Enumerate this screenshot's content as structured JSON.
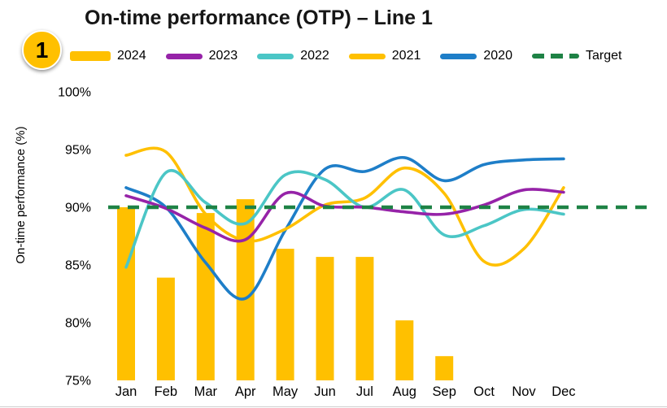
{
  "badge": {
    "label": "1"
  },
  "title": "On-time performance (OTP) – Line 1",
  "ylabel": "On-time performance (%)",
  "legend": [
    {
      "label": "2024",
      "color": "#FFC000",
      "style": "bar"
    },
    {
      "label": "2023",
      "color": "#9623A8",
      "style": "line"
    },
    {
      "label": "2022",
      "color": "#4BC6C6",
      "style": "line"
    },
    {
      "label": "2021",
      "color": "#FFC000",
      "style": "line"
    },
    {
      "label": "2020",
      "color": "#1E7EC8",
      "style": "line"
    },
    {
      "label": "Target",
      "color": "#1E8245",
      "style": "dashed"
    }
  ],
  "chart_data": {
    "type": "bar",
    "subtype": "combo-bar-and-smooth-lines",
    "title": "On-time performance (OTP) – Line 1",
    "xlabel": "",
    "ylabel": "On-time performance (%)",
    "categories": [
      "Jan",
      "Feb",
      "Mar",
      "Apr",
      "May",
      "Jun",
      "Jul",
      "Aug",
      "Sep",
      "Oct",
      "Nov",
      "Dec"
    ],
    "bar_series": {
      "name": "2024",
      "color": "#FFC000",
      "values": [
        90.0,
        83.9,
        89.5,
        90.7,
        86.4,
        85.7,
        85.7,
        80.2,
        77.1,
        null,
        null,
        null
      ]
    },
    "series": [
      {
        "name": "2023",
        "color": "#9623A8",
        "values": [
          91.0,
          89.9,
          88.2,
          87.2,
          91.2,
          90.1,
          90.0,
          89.6,
          89.4,
          90.2,
          91.5,
          91.3
        ]
      },
      {
        "name": "2022",
        "color": "#4BC6C6",
        "values": [
          84.8,
          93.0,
          90.4,
          88.6,
          92.8,
          92.4,
          90.0,
          91.5,
          87.6,
          88.4,
          89.8,
          89.4
        ]
      },
      {
        "name": "2021",
        "color": "#FFC000",
        "values": [
          94.5,
          94.8,
          89.4,
          87.1,
          88.1,
          90.2,
          90.8,
          93.4,
          91.2,
          85.3,
          86.4,
          91.7
        ]
      },
      {
        "name": "2020",
        "color": "#1E7EC8",
        "values": [
          91.7,
          90.0,
          85.2,
          82.1,
          88.0,
          93.3,
          93.1,
          94.3,
          92.3,
          93.7,
          94.1,
          94.2
        ]
      }
    ],
    "target": {
      "name": "Target",
      "value": 90,
      "color": "#1E8245"
    },
    "ylim": [
      75,
      100
    ],
    "yticks": [
      100,
      95,
      90,
      85,
      80,
      75
    ],
    "ytick_suffix": "%",
    "grid": false,
    "legend_position": "top"
  }
}
